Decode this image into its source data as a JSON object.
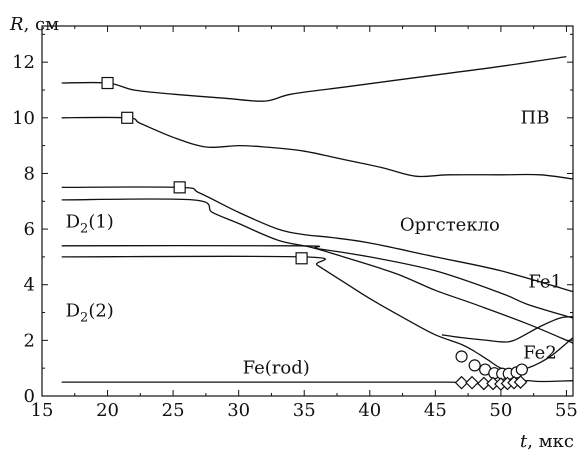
{
  "chart_data": {
    "type": "line",
    "title": "",
    "xlabel": "t, мкс",
    "ylabel": "R, см",
    "xlabel_var": "t",
    "xlabel_unit": ", мкс",
    "ylabel_var": "R",
    "ylabel_unit": ", см",
    "xlim": [
      15,
      55.5
    ],
    "ylim": [
      0,
      13.3
    ],
    "x_ticks": [
      15,
      20,
      25,
      30,
      35,
      40,
      45,
      50,
      55
    ],
    "y_ticks": [
      0,
      2,
      4,
      6,
      8,
      10,
      12
    ],
    "grid": false,
    "line_color": "#111111",
    "series": [
      {
        "points": [
          [
            16.5,
            11.25
          ],
          [
            20,
            11.25
          ],
          [
            22,
            11.0
          ],
          [
            25,
            10.85
          ],
          [
            29,
            10.7
          ],
          [
            32,
            10.6
          ],
          [
            34,
            10.85
          ],
          [
            38,
            11.1
          ],
          [
            42,
            11.35
          ],
          [
            46,
            11.6
          ],
          [
            50,
            11.85
          ],
          [
            55,
            12.2
          ]
        ]
      },
      {
        "points": [
          [
            16.5,
            10.0
          ],
          [
            21.5,
            10.0
          ],
          [
            22.5,
            9.8
          ],
          [
            25,
            9.3
          ],
          [
            27.5,
            8.95
          ],
          [
            30,
            9.0
          ],
          [
            32,
            8.95
          ],
          [
            35,
            8.8
          ],
          [
            38,
            8.5
          ],
          [
            41,
            8.2
          ],
          [
            43.5,
            7.9
          ],
          [
            46,
            7.95
          ],
          [
            50,
            7.95
          ],
          [
            53,
            7.95
          ],
          [
            55.5,
            7.8
          ]
        ]
      },
      {
        "points": [
          [
            16.5,
            7.5
          ],
          [
            25.5,
            7.5
          ],
          [
            27,
            7.3
          ],
          [
            30,
            6.6
          ],
          [
            33,
            6.0
          ],
          [
            35,
            5.8
          ],
          [
            37,
            5.7
          ],
          [
            40,
            5.5
          ],
          [
            45,
            5.0
          ],
          [
            50,
            4.5
          ],
          [
            55.5,
            3.75
          ]
        ]
      },
      {
        "points": [
          [
            16.5,
            7.05
          ],
          [
            26.5,
            7.05
          ],
          [
            28,
            6.6
          ],
          [
            30,
            6.2
          ],
          [
            33,
            5.6
          ],
          [
            35.5,
            5.35
          ],
          [
            38,
            5.0
          ],
          [
            42,
            4.4
          ],
          [
            45,
            3.8
          ],
          [
            48,
            3.3
          ],
          [
            52,
            2.6
          ],
          [
            55.5,
            1.9
          ]
        ]
      },
      {
        "points": [
          [
            16.5,
            5.4
          ],
          [
            34.5,
            5.4
          ],
          [
            36,
            5.3
          ],
          [
            40,
            5.0
          ],
          [
            45,
            4.5
          ],
          [
            50,
            3.7
          ],
          [
            52,
            3.3
          ],
          [
            55.5,
            2.8
          ]
        ]
      },
      {
        "points": [
          [
            16.5,
            5.0
          ],
          [
            35,
            5.0
          ],
          [
            36,
            4.7
          ],
          [
            38,
            4.1
          ],
          [
            40,
            3.5
          ],
          [
            43,
            2.7
          ],
          [
            45,
            2.2
          ],
          [
            47,
            1.85
          ],
          [
            48,
            1.6
          ],
          [
            49,
            1.3
          ],
          [
            50,
            1.0
          ],
          [
            51,
            0.9
          ],
          [
            52,
            1.0
          ],
          [
            53,
            1.2
          ],
          [
            54,
            1.5
          ],
          [
            55.5,
            2.1
          ]
        ]
      },
      {
        "points": [
          [
            45.5,
            2.2
          ],
          [
            47,
            2.1
          ],
          [
            49,
            2.0
          ],
          [
            50,
            1.95
          ],
          [
            51,
            2.0
          ],
          [
            53,
            2.5
          ],
          [
            54.5,
            2.8
          ],
          [
            55.5,
            2.85
          ]
        ]
      },
      {
        "points": [
          [
            16.5,
            0.5
          ],
          [
            30,
            0.5
          ],
          [
            40,
            0.5
          ],
          [
            46,
            0.5
          ],
          [
            48,
            0.45
          ],
          [
            50,
            0.42
          ],
          [
            51,
            0.45
          ],
          [
            52,
            0.55
          ],
          [
            53,
            0.52
          ],
          [
            55.5,
            0.55
          ]
        ]
      }
    ],
    "square_markers": [
      [
        20,
        11.25
      ],
      [
        21.5,
        10.0
      ],
      [
        25.5,
        7.5
      ],
      [
        34.8,
        4.95
      ]
    ],
    "circle_markers": [
      [
        47,
        1.42
      ],
      [
        48,
        1.1
      ],
      [
        48.8,
        0.95
      ],
      [
        49.5,
        0.82
      ],
      [
        50.1,
        0.8
      ],
      [
        50.6,
        0.8
      ],
      [
        51.2,
        0.85
      ],
      [
        51.6,
        0.95
      ]
    ],
    "diamond_markers": [
      [
        47,
        0.48
      ],
      [
        47.8,
        0.48
      ],
      [
        48.7,
        0.45
      ],
      [
        49.4,
        0.45
      ],
      [
        50,
        0.43
      ],
      [
        50.5,
        0.45
      ],
      [
        51,
        0.48
      ],
      [
        51.5,
        0.5
      ]
    ],
    "annotations": [
      {
        "x": 51.5,
        "y": 9.8,
        "main": "ПВ",
        "sub": "",
        "tail": ""
      },
      {
        "x": 42.3,
        "y": 5.95,
        "main": "Оргстекло",
        "sub": "",
        "tail": ""
      },
      {
        "x": 52.1,
        "y": 3.9,
        "main": "Fe1",
        "sub": "",
        "tail": ""
      },
      {
        "x": 51.7,
        "y": 1.35,
        "main": "Fe2",
        "sub": "",
        "tail": ""
      },
      {
        "x": 16.8,
        "y": 6.05,
        "main": "D",
        "sub": "2",
        "tail": "(1)"
      },
      {
        "x": 16.8,
        "y": 2.85,
        "main": "D",
        "sub": "2",
        "tail": "(2)"
      },
      {
        "x": 30.3,
        "y": 0.8,
        "main": "Fe(rod)",
        "sub": "",
        "tail": ""
      }
    ]
  }
}
